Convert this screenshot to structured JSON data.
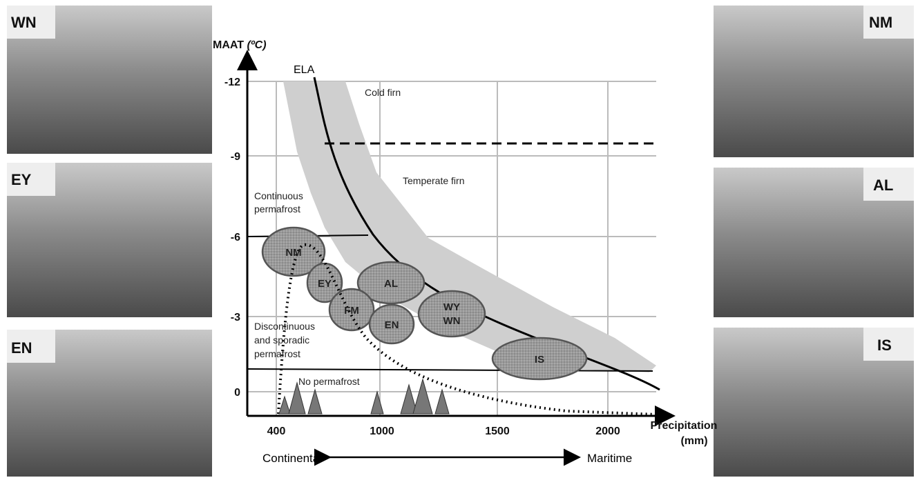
{
  "photos_left": [
    {
      "label": "WN"
    },
    {
      "label": "EY"
    },
    {
      "label": "EN"
    }
  ],
  "photos_right": [
    {
      "label": "NM"
    },
    {
      "label": "AL"
    },
    {
      "label": "IS"
    }
  ],
  "y_axis": {
    "title": "MAAT",
    "unit": "(ºC)",
    "ticks": [
      "-12",
      "-9",
      "-6",
      "-3",
      "0"
    ]
  },
  "x_axis": {
    "title": "Precipitation",
    "unit": "(mm)",
    "ticks": [
      "400",
      "1000",
      "1500",
      "2000"
    ]
  },
  "curve_label": "ELA",
  "zones": {
    "cold_firn": "Cold firn",
    "temperate_firn": "Temperate firn",
    "continuous": [
      "Continuous",
      "permafrost"
    ],
    "discontinuous": [
      "Discontinuous",
      "and sporadic",
      "permafrost"
    ],
    "none": "No permafrost"
  },
  "sites": [
    {
      "lines": [
        "NM"
      ]
    },
    {
      "lines": [
        "EY"
      ]
    },
    {
      "lines": [
        "AL"
      ]
    },
    {
      "lines": [
        "FM"
      ]
    },
    {
      "lines": [
        "EN"
      ]
    },
    {
      "lines": [
        "WY",
        "WN"
      ]
    },
    {
      "lines": [
        "IS"
      ]
    }
  ],
  "continuum": {
    "left": "Continental",
    "right": "Maritime"
  }
}
